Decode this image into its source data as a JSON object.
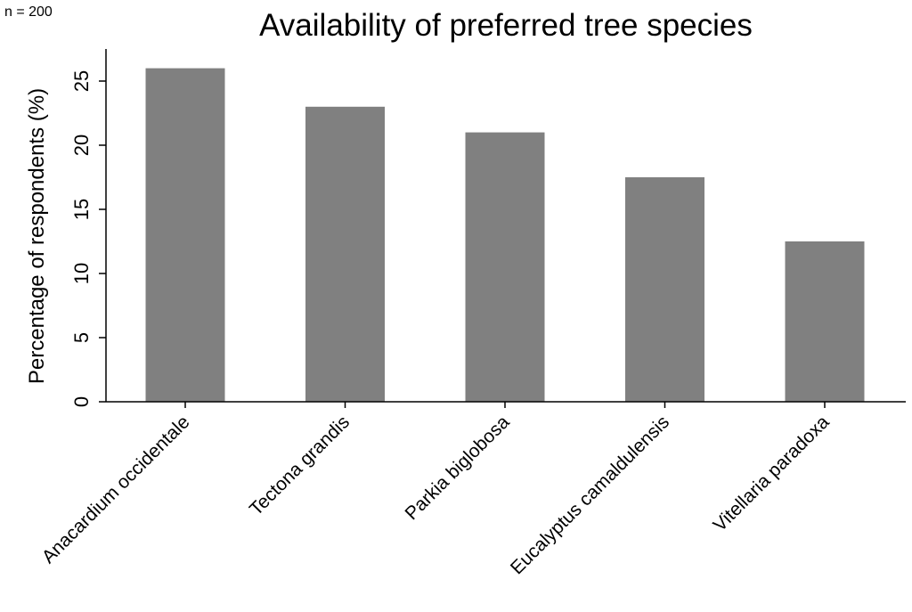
{
  "note": "n = 200",
  "chart_data": {
    "type": "bar",
    "title": "Availability of preferred tree species",
    "xlabel": "",
    "ylabel": "Percentage of respondents (%)",
    "categories": [
      "Anacardium occidentale",
      "Tectona grandis",
      "Parkia biglobosa",
      "Eucalyptus camaldulensis",
      "Vitellaria paradoxa"
    ],
    "values": [
      26,
      23,
      21,
      17.5,
      12.5
    ],
    "ylim": [
      0,
      27.5
    ],
    "yticks": [
      0,
      5,
      10,
      15,
      20,
      25
    ],
    "ytick_labels": [
      "0",
      "5",
      "10",
      "15",
      "20",
      "25"
    ],
    "bar_color": "#808080",
    "grid": false,
    "legend": "none"
  }
}
